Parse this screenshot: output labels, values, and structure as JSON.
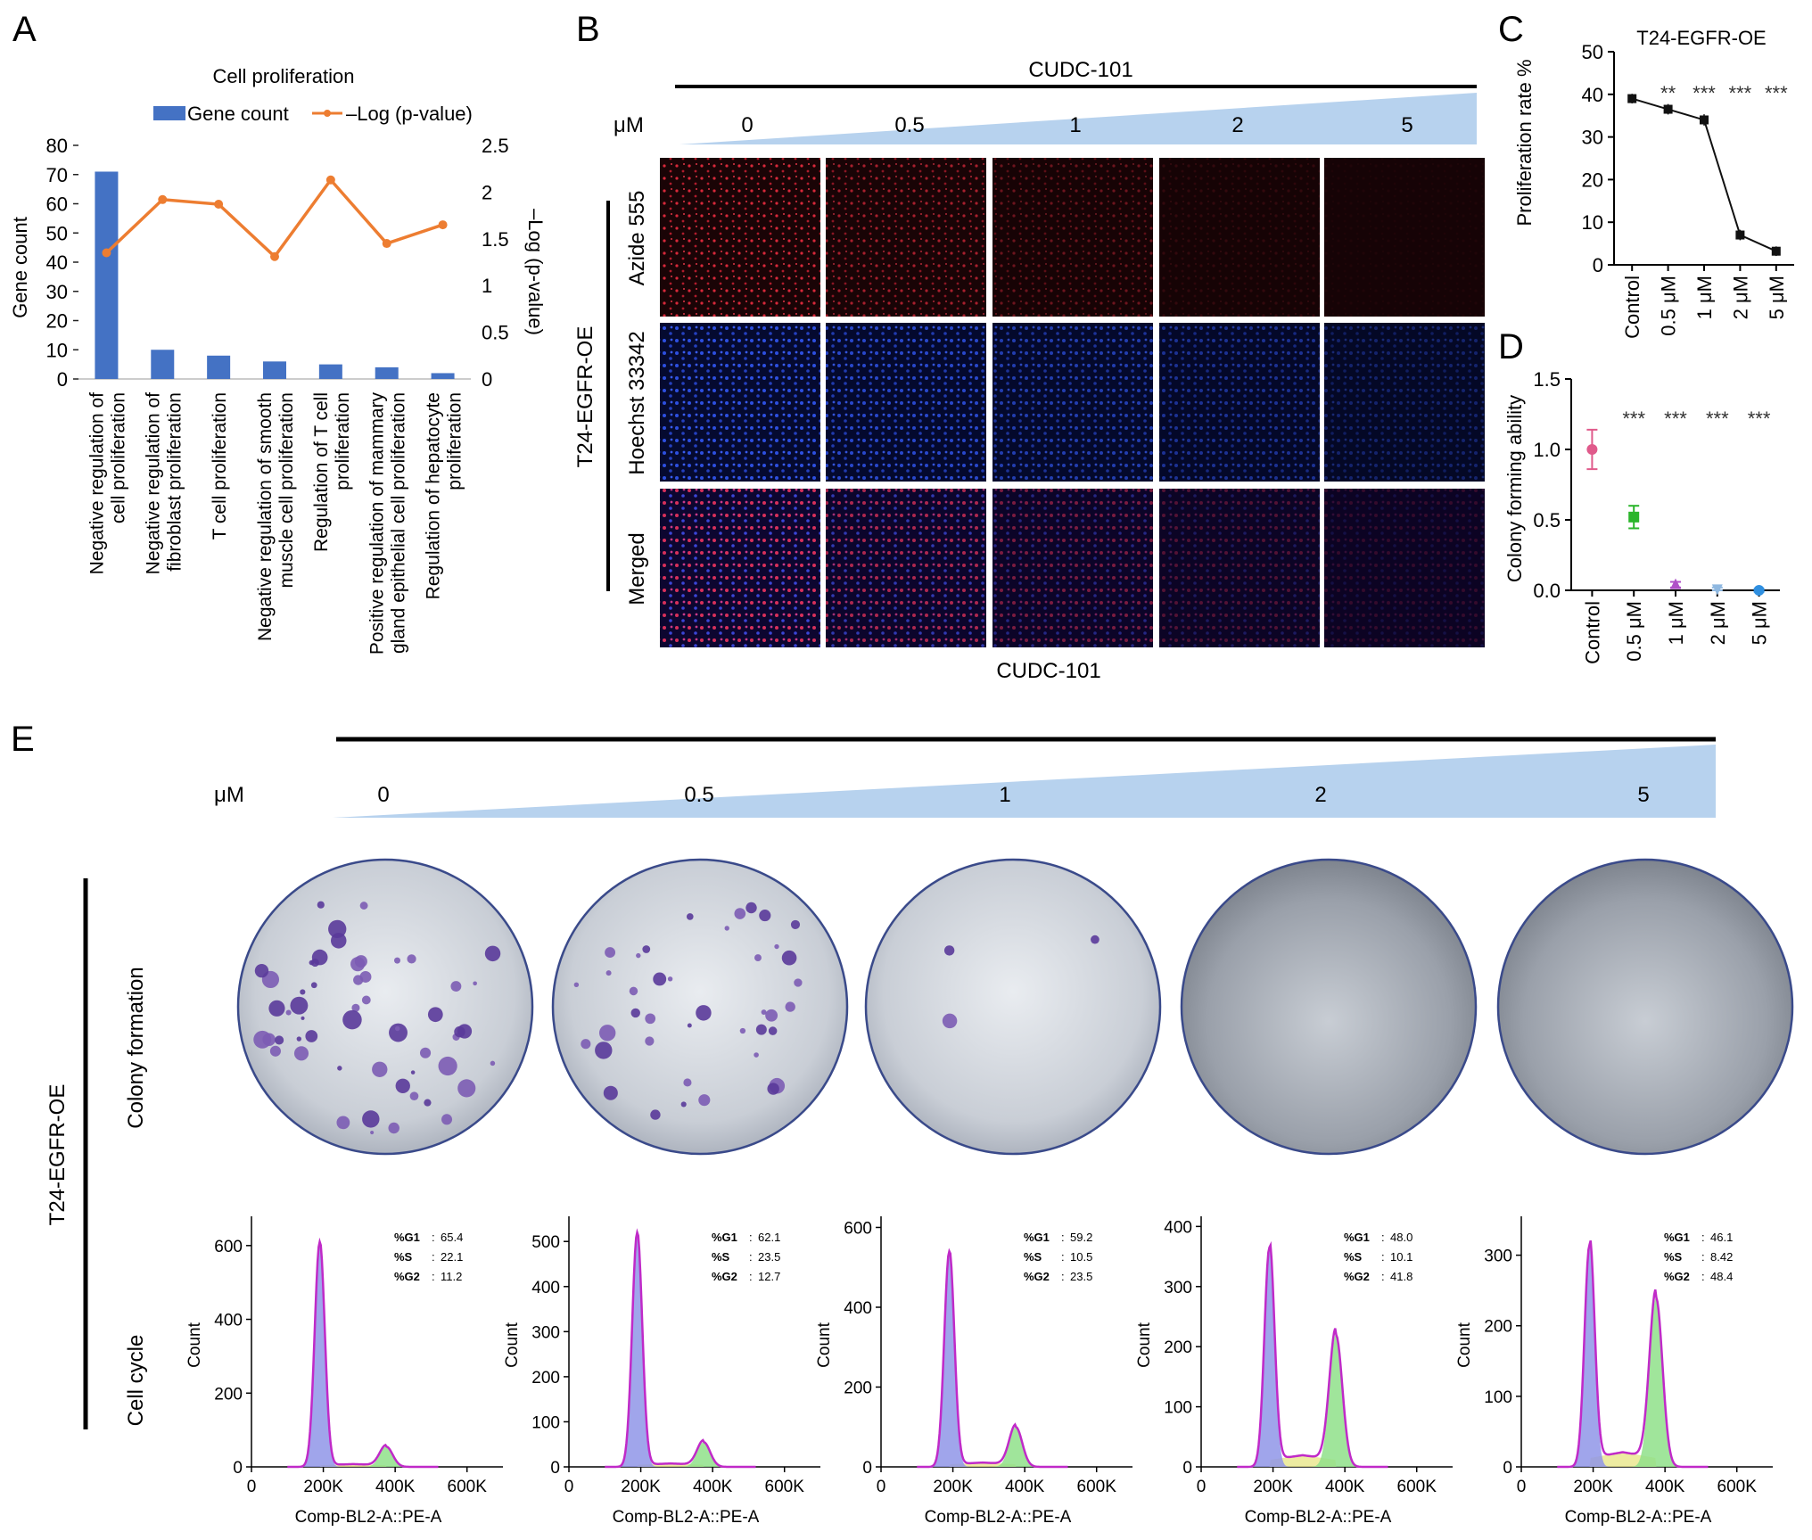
{
  "panel_labels": {
    "a": "A",
    "b": "B",
    "c": "C",
    "d": "D",
    "e": "E"
  },
  "panel_a": {
    "title": "Cell proliferation",
    "legend": {
      "bar": "Gene count",
      "line": "–Log (p-value)"
    },
    "ylabel_left": "Gene count",
    "ylabel_right": "–Log (p-value)",
    "yticks_left": [
      "0",
      "10",
      "20",
      "30",
      "40",
      "50",
      "60",
      "70",
      "80"
    ],
    "yticks_right": [
      "0",
      "0.5",
      "1",
      "1.5",
      "2",
      "2.5"
    ],
    "colors": {
      "bar": "#4472c4",
      "line": "#ed7d31"
    }
  },
  "panel_b": {
    "cudc_label": "CUDC-101",
    "um_label": "μM",
    "doses": [
      "0",
      "0.5",
      "1",
      "2",
      "5"
    ],
    "rows": [
      "Azide 555",
      "Hoechst 33342",
      "Merged"
    ],
    "group_label": "T24-EGFR-OE",
    "bottom_label": "CUDC-101"
  },
  "panel_c": {
    "title": "T24-EGFR-OE",
    "ylabel": "Proliferation rate %",
    "yticks": [
      "0",
      "10",
      "20",
      "30",
      "40",
      "50"
    ],
    "sig": [
      "**",
      "***",
      "***",
      "***"
    ]
  },
  "panel_d": {
    "ylabel": "Colony forming ability",
    "yticks": [
      "0.0",
      "0.5",
      "1.0",
      "1.5"
    ],
    "sig": [
      "***",
      "***",
      "***",
      "***"
    ]
  },
  "panel_e": {
    "um_label": "μM",
    "doses": [
      "0",
      "0.5",
      "1",
      "2",
      "5"
    ],
    "group_label": "T24-EGFR-OE",
    "row_colony": "Colony formation",
    "row_cycle": "Cell cycle",
    "xlabel": "Comp-BL2-A::PE-A",
    "ylabel": "Count",
    "xticks": [
      "0",
      "200K",
      "400K",
      "600K"
    ],
    "histograms": [
      {
        "yticks": [
          "0",
          "200",
          "400",
          "600"
        ],
        "ymax": 660,
        "g1_peak": 610,
        "g2_peak": 55,
        "stats": {
          "G1": "65.4",
          "S": "22.1",
          "G2": "11.2"
        }
      },
      {
        "yticks": [
          "0",
          "100",
          "200",
          "300",
          "400",
          "500"
        ],
        "ymax": 540,
        "g1_peak": 520,
        "g2_peak": 55,
        "stats": {
          "G1": "62.1",
          "S": "23.5",
          "G2": "12.7"
        }
      },
      {
        "yticks": [
          "0",
          "200",
          "400",
          "600"
        ],
        "ymax": 610,
        "g1_peak": 540,
        "g2_peak": 100,
        "stats": {
          "G1": "59.2",
          "S": "10.5",
          "G2": "23.5"
        }
      },
      {
        "yticks": [
          "0",
          "100",
          "200",
          "300",
          "400"
        ],
        "ymax": 405,
        "g1_peak": 365,
        "g2_peak": 220,
        "stats": {
          "G1": "48.0",
          "S": "10.1",
          "G2": "41.8"
        }
      },
      {
        "yticks": [
          "0",
          "100",
          "200",
          "300"
        ],
        "ymax": 345,
        "g1_peak": 315,
        "g2_peak": 240,
        "stats": {
          "G1": "46.1",
          "S": "8.42",
          "G2": "48.4"
        }
      }
    ],
    "stat_names": {
      "G1": "%G1",
      "S": "%S",
      "G2": "%G2"
    }
  },
  "chart_data": [
    {
      "type": "bar",
      "title": "Cell proliferation",
      "categories": [
        "Negative regulation of cell proliferation",
        "Negative regulation of fibroblast proliferation",
        "T cell proliferation",
        "Negative regulation of smooth muscle cell proliferation",
        "Regulation of T cell proliferation",
        "Positive regulation of mammary gland epithelial cell proliferation",
        "Regulation of hepatocyte proliferation"
      ],
      "series": [
        {
          "name": "Gene count",
          "values": [
            71,
            10,
            8,
            6,
            5,
            4,
            2
          ]
        },
        {
          "name": "–Log (p-value)",
          "values": [
            1.35,
            1.92,
            1.87,
            1.31,
            2.13,
            1.45,
            1.65
          ]
        }
      ],
      "ylabel": "Gene count",
      "y2label": "–Log (p-value)",
      "ylim": [
        0,
        80
      ],
      "y2lim": [
        0,
        2.5
      ]
    },
    {
      "type": "line",
      "title": "T24-EGFR-OE",
      "categories": [
        "Control",
        "0.5 μM",
        "1 μM",
        "2 μM",
        "5 μM"
      ],
      "values": [
        39,
        36.5,
        34,
        7,
        3.2
      ],
      "errors": [
        0.5,
        0.6,
        0.7,
        0.6,
        0.5
      ],
      "ylabel": "Proliferation rate %",
      "ylim": [
        0,
        50
      ]
    },
    {
      "type": "scatter",
      "categories": [
        "Control",
        "0.5 μM",
        "1 μM",
        "2 μM",
        "5 μM"
      ],
      "values": [
        1.0,
        0.52,
        0.04,
        0.01,
        0.0
      ],
      "errors": [
        0.14,
        0.08,
        0.02,
        0.01,
        0.01
      ],
      "colors": [
        "#e05a8b",
        "#2bb52b",
        "#b050c8",
        "#8fb8e0",
        "#2f8fe0"
      ],
      "ylabel": "Colony forming ability",
      "ylim": [
        0,
        1.5
      ]
    }
  ]
}
